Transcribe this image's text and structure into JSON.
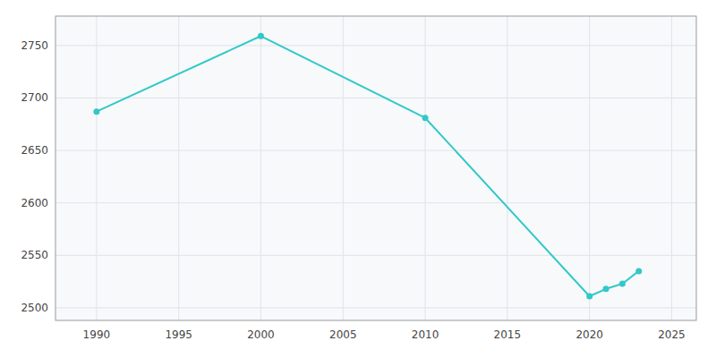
{
  "chart_data": {
    "type": "line",
    "x": [
      1990,
      2000,
      2010,
      2020,
      2021,
      2022,
      2023
    ],
    "values": [
      2687,
      2759,
      2681,
      2511,
      2518,
      2523,
      2535
    ],
    "color": "#32c8c8",
    "marker": "circle",
    "xlim": [
      1987.5,
      2026.5
    ],
    "ylim": [
      2488,
      2778
    ],
    "xticks": [
      1990,
      1995,
      2000,
      2005,
      2010,
      2015,
      2020,
      2025
    ],
    "yticks": [
      2500,
      2550,
      2600,
      2650,
      2700,
      2750
    ],
    "grid": true
  }
}
